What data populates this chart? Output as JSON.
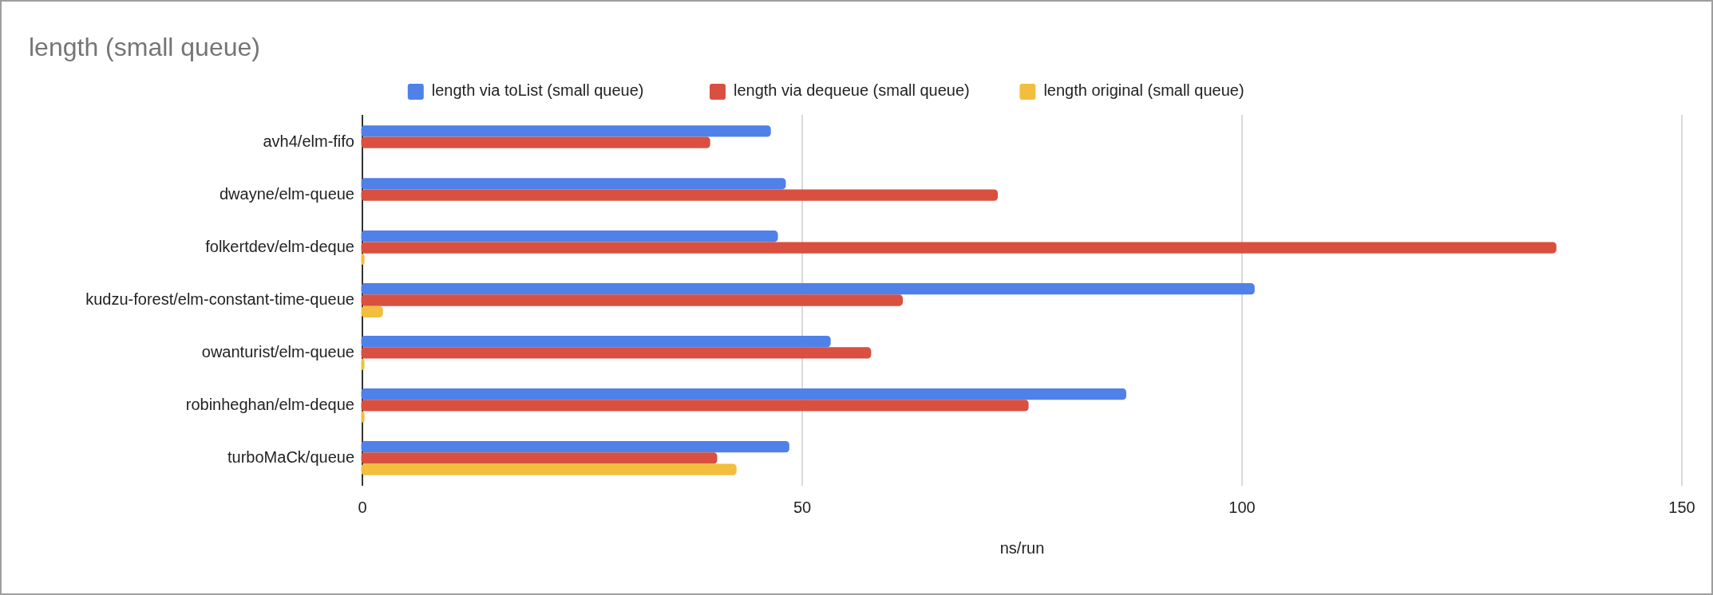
{
  "chart_data": {
    "type": "bar",
    "orientation": "horizontal",
    "title": "length (small queue)",
    "xlabel": "ns/run",
    "categories": [
      "avh4/elm-fifo",
      "dwayne/elm-queue",
      "folkertdev/elm-deque",
      "kudzu-forest/elm-constant-time-queue",
      "owanturist/elm-queue",
      "robinheghan/elm-deque",
      "turboMaCk/queue"
    ],
    "series": [
      {
        "name": "length via toList (small queue)",
        "color": "#4f81e8",
        "values": [
          46.3,
          48.0,
          47.1,
          101.3,
          53.1,
          86.7,
          48.4
        ]
      },
      {
        "name": "length via dequeue (small queue)",
        "color": "#d95040",
        "values": [
          39.4,
          72.1,
          135.6,
          61.3,
          57.7,
          75.6,
          40.2
        ]
      },
      {
        "name": "length original (small queue)",
        "color": "#f3be3e",
        "values": [
          null,
          null,
          0.1,
          2.2,
          0.1,
          0.1,
          42.4
        ]
      }
    ],
    "xlim": [
      0,
      150
    ],
    "xticks": [
      0,
      50,
      100,
      150
    ],
    "grid": "x",
    "legend": "top"
  }
}
